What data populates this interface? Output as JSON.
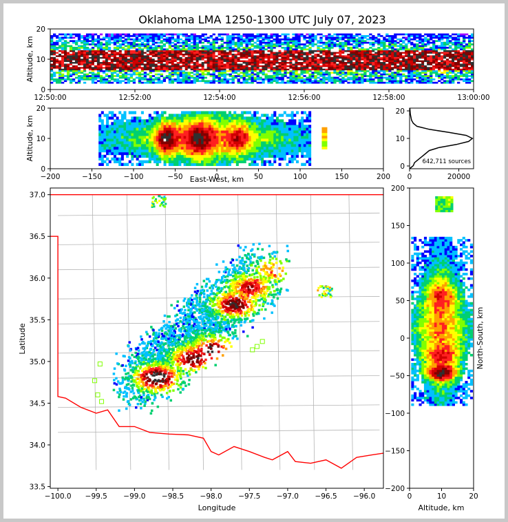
{
  "chart_data": {
    "type": "scatter",
    "title": "Oklahoma LMA 1250-1300 UTC July 07, 2023",
    "panels": {
      "time_altitude": {
        "ylabel": "Altitude, km",
        "ylim": [
          0,
          20
        ],
        "yticks": [
          "0",
          "10",
          "20"
        ],
        "xticks": [
          "12:50:00",
          "12:52:00",
          "12:54:00",
          "12:56:00",
          "12:58:00",
          "13:00:00"
        ],
        "band_km": [
          2,
          18
        ],
        "core_km": [
          6,
          13
        ]
      },
      "eastwest_altitude": {
        "xlabel": "East-West, km",
        "ylabel": "Altitude, km",
        "xlim": [
          -200,
          200
        ],
        "ylim": [
          0,
          20
        ],
        "xticks": [
          "−200",
          "−150",
          "−100",
          "−50",
          "0",
          "50",
          "100",
          "150",
          "200"
        ],
        "yticks": [
          "0",
          "10",
          "20"
        ]
      },
      "altitude_histogram": {
        "ylim": [
          0,
          20
        ],
        "xlim": [
          0,
          26000
        ],
        "yticks": [
          "0",
          "10",
          "20"
        ],
        "xticks": [
          "0",
          "20000"
        ],
        "sources_label": "642,711 sources",
        "profile": [
          [
            0,
            0
          ],
          [
            1,
            1500
          ],
          [
            2,
            2000
          ],
          [
            3,
            3500
          ],
          [
            4,
            5000
          ],
          [
            5,
            6500
          ],
          [
            6,
            8000
          ],
          [
            7,
            12000
          ],
          [
            8,
            19000
          ],
          [
            9,
            24000
          ],
          [
            10,
            25500
          ],
          [
            11,
            23000
          ],
          [
            12,
            16000
          ],
          [
            13,
            8000
          ],
          [
            14,
            3000
          ],
          [
            15,
            1500
          ],
          [
            16,
            800
          ],
          [
            18,
            300
          ],
          [
            20,
            100
          ]
        ]
      },
      "plan_view": {
        "xlabel": "Longitude",
        "ylabel": "Latitude",
        "xlim": [
          -100.1,
          -95.75
        ],
        "ylim": [
          33.48,
          37.08
        ],
        "xticks": [
          "−100.0",
          "−99.5",
          "−99.0",
          "−98.5",
          "−98.0",
          "−97.5",
          "−97.0",
          "−96.5",
          "−96.0"
        ],
        "yticks": [
          "33.5",
          "34.0",
          "34.5",
          "35.0",
          "35.5",
          "36.0",
          "36.5",
          "37.0"
        ],
        "cells": [
          {
            "lon": -98.72,
            "lat": 34.82,
            "intensity": "max"
          },
          {
            "lon": -98.25,
            "lat": 35.05,
            "intensity": "high"
          },
          {
            "lon": -98.0,
            "lat": 35.15,
            "intensity": "high"
          },
          {
            "lon": -97.7,
            "lat": 35.7,
            "intensity": "high"
          },
          {
            "lon": -97.5,
            "lat": 35.9,
            "intensity": "medium"
          },
          {
            "lon": -97.2,
            "lat": 36.1,
            "intensity": "low"
          },
          {
            "lon": -98.7,
            "lat": 36.93,
            "intensity": "low"
          },
          {
            "lon": -96.53,
            "lat": 35.85,
            "intensity": "low"
          }
        ],
        "stations": [
          [
            -99.52,
            34.77
          ],
          [
            -99.45,
            34.97
          ],
          [
            -99.48,
            34.6
          ],
          [
            -99.43,
            34.52
          ],
          [
            -97.33,
            35.24
          ],
          [
            -97.4,
            35.18
          ],
          [
            -97.46,
            35.14
          ]
        ]
      },
      "northsouth_altitude": {
        "xlabel": "Altitude, km",
        "ylabel": "North-South, km",
        "xlim": [
          0,
          20
        ],
        "ylim": [
          -200,
          200
        ],
        "xticks": [
          "0",
          "10",
          "20"
        ],
        "yticks": [
          "200",
          "150",
          "100",
          "50",
          "0",
          "−50",
          "−100",
          "−150",
          "−200"
        ]
      }
    },
    "colorscale": [
      "#ffffff",
      "#a000ff",
      "#0000ff",
      "#00c0ff",
      "#00d070",
      "#80ff00",
      "#ffff00",
      "#ffa000",
      "#ff2020",
      "#d00000",
      "#800000",
      "#303030",
      "#ffffff"
    ],
    "border_color": "#ff0000",
    "county_color": "#b4b4b4"
  }
}
